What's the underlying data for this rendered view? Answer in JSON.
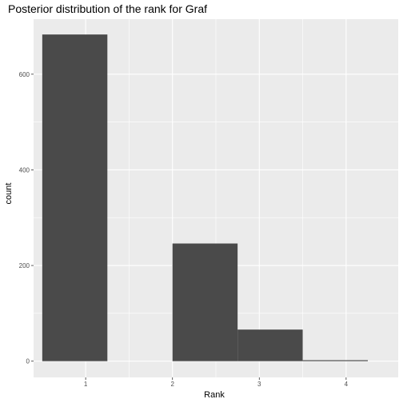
{
  "chart_data": {
    "type": "bar",
    "title": "Posterior distribution of the rank for Graf",
    "xlabel": "Rank",
    "ylabel": "count",
    "x_ticks": [
      1,
      2,
      3,
      4
    ],
    "y_ticks": [
      0,
      200,
      400,
      600
    ],
    "xlim": [
      0.4,
      4.6
    ],
    "ylim": [
      -34,
      715
    ],
    "bins": [
      {
        "x_start": 0.5,
        "x_end": 1.25,
        "count": 683
      },
      {
        "x_start": 1.25,
        "x_end": 2.0,
        "count": 0
      },
      {
        "x_start": 2.0,
        "x_end": 2.75,
        "count": 246
      },
      {
        "x_start": 2.75,
        "x_end": 3.5,
        "count": 66
      },
      {
        "x_start": 3.5,
        "x_end": 4.25,
        "count": 2
      }
    ],
    "grid": true,
    "bar_color": "#4a4a4a",
    "panel_background": "#ebebeb",
    "grid_color": "#ffffff"
  }
}
